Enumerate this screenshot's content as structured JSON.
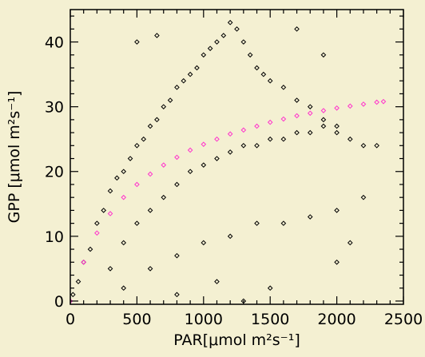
{
  "chart_data": {
    "type": "scatter",
    "title": "",
    "xlabel": "PAR[μmol m²s⁻¹]",
    "ylabel": "GPP [μmol m²s⁻¹]",
    "xlim": [
      0,
      2500
    ],
    "ylim": [
      -0.5,
      45
    ],
    "xticks": [
      0,
      500,
      1000,
      1500,
      2000,
      2500
    ],
    "yticks": [
      0,
      10,
      20,
      30,
      40
    ],
    "grid": false,
    "legend": "none",
    "marker": "diamond",
    "background_color": "#f4f0d2",
    "series": [
      {
        "color": "#000000",
        "description_x_range": [
          0,
          2300
        ],
        "values": [
          [
            20,
            1
          ],
          [
            60,
            3
          ],
          [
            100,
            6
          ],
          [
            150,
            8
          ],
          [
            200,
            12
          ],
          [
            250,
            14
          ],
          [
            300,
            17
          ],
          [
            350,
            19
          ],
          [
            400,
            20
          ],
          [
            450,
            22
          ],
          [
            500,
            24
          ],
          [
            550,
            25
          ],
          [
            600,
            27
          ],
          [
            650,
            28
          ],
          [
            700,
            30
          ],
          [
            750,
            31
          ],
          [
            800,
            33
          ],
          [
            850,
            34
          ],
          [
            900,
            35
          ],
          [
            950,
            36
          ],
          [
            1000,
            38
          ],
          [
            1050,
            39
          ],
          [
            1100,
            40
          ],
          [
            1150,
            41
          ],
          [
            1200,
            43
          ],
          [
            1250,
            42
          ],
          [
            1300,
            40
          ],
          [
            1350,
            38
          ],
          [
            1400,
            36
          ],
          [
            1450,
            35
          ],
          [
            1500,
            34
          ],
          [
            1600,
            33
          ],
          [
            1700,
            31
          ],
          [
            1800,
            30
          ],
          [
            1900,
            28
          ],
          [
            2000,
            26
          ],
          [
            2100,
            25
          ],
          [
            2200,
            24
          ],
          [
            2300,
            24
          ],
          [
            300,
            5
          ],
          [
            400,
            9
          ],
          [
            500,
            12
          ],
          [
            600,
            14
          ],
          [
            700,
            16
          ],
          [
            800,
            18
          ],
          [
            900,
            20
          ],
          [
            1000,
            21
          ],
          [
            1100,
            22
          ],
          [
            1200,
            23
          ],
          [
            1300,
            24
          ],
          [
            1400,
            24
          ],
          [
            1500,
            25
          ],
          [
            1600,
            25
          ],
          [
            1700,
            26
          ],
          [
            1800,
            26
          ],
          [
            1900,
            27
          ],
          [
            2000,
            27
          ],
          [
            400,
            2
          ],
          [
            600,
            5
          ],
          [
            800,
            7
          ],
          [
            1000,
            9
          ],
          [
            1200,
            10
          ],
          [
            1400,
            12
          ],
          [
            1600,
            12
          ],
          [
            1800,
            13
          ],
          [
            2000,
            14
          ],
          [
            2200,
            16
          ],
          [
            500,
            40
          ],
          [
            650,
            41
          ],
          [
            1700,
            42
          ],
          [
            1900,
            38
          ],
          [
            1300,
            0
          ],
          [
            1500,
            2
          ],
          [
            800,
            1
          ],
          [
            1100,
            3
          ],
          [
            2000,
            6
          ],
          [
            2100,
            9
          ]
        ]
      },
      {
        "color": "#ff33cc",
        "model": "light-response curve",
        "description_x_range": [
          0,
          2350
        ],
        "values": [
          [
            0,
            0
          ],
          [
            100,
            6
          ],
          [
            200,
            10.5
          ],
          [
            300,
            13.5
          ],
          [
            400,
            16
          ],
          [
            500,
            18
          ],
          [
            600,
            19.6
          ],
          [
            700,
            21
          ],
          [
            800,
            22.2
          ],
          [
            900,
            23.3
          ],
          [
            1000,
            24.2
          ],
          [
            1100,
            25
          ],
          [
            1200,
            25.8
          ],
          [
            1300,
            26.4
          ],
          [
            1400,
            27
          ],
          [
            1500,
            27.6
          ],
          [
            1600,
            28.1
          ],
          [
            1700,
            28.6
          ],
          [
            1800,
            29
          ],
          [
            1900,
            29.4
          ],
          [
            2000,
            29.8
          ],
          [
            2100,
            30.1
          ],
          [
            2200,
            30.4
          ],
          [
            2300,
            30.7
          ],
          [
            2350,
            30.8
          ]
        ]
      }
    ]
  }
}
